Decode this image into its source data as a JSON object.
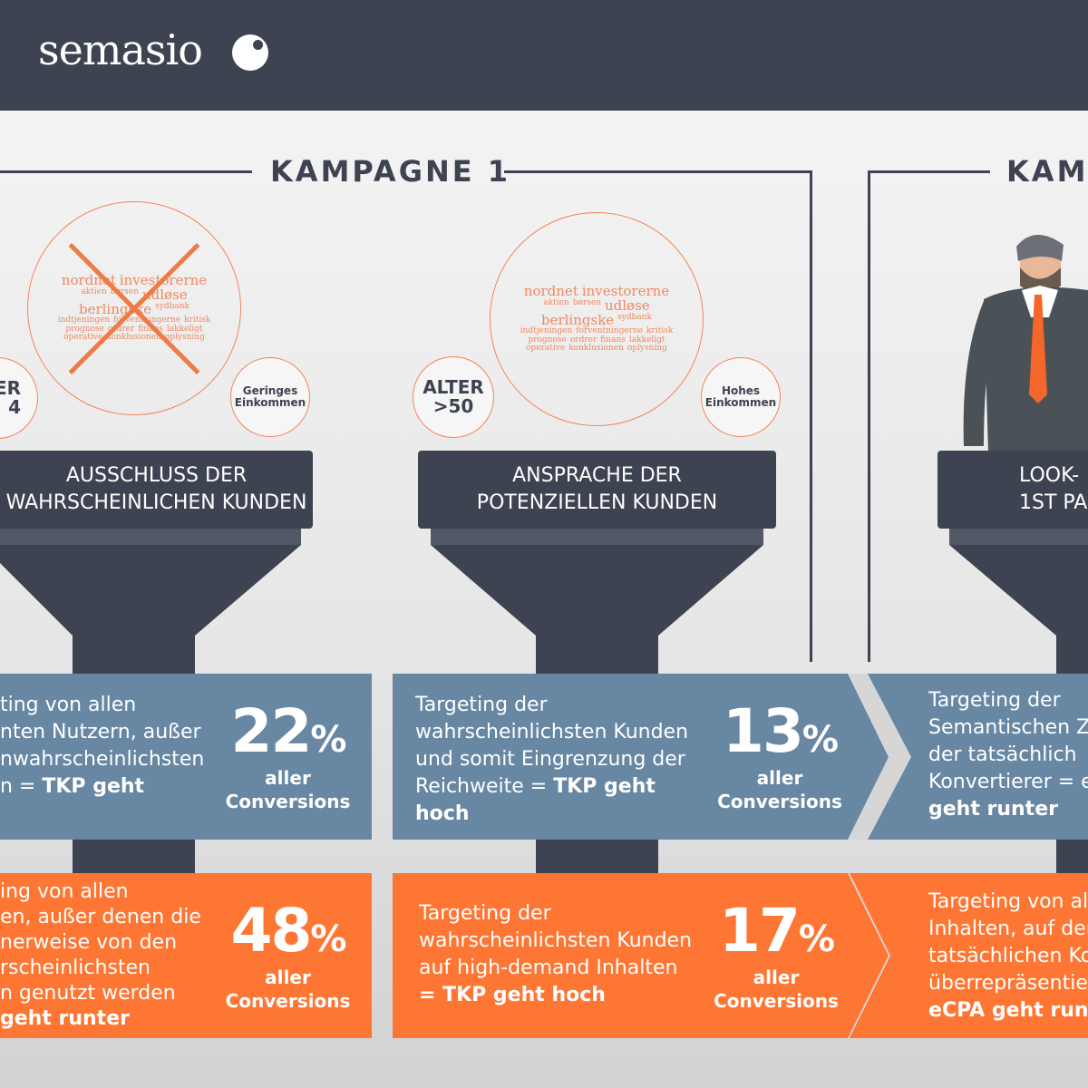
{
  "header": {
    "logo": "semasio",
    "logo_icon": "semasio-mark-icon"
  },
  "colors": {
    "dark": "#3d4350",
    "blue": "#6787a3",
    "orange": "#fe7633",
    "accent_line": "#f4845a"
  },
  "campaign1": {
    "title": "KAMPAGNE 1",
    "cloud_words": [
      "nordnet",
      "investorerne",
      "aktien",
      "børsen",
      "udløse",
      "berlingske",
      "sydbank",
      "indtjeningen",
      "forventningerne",
      "kritisk",
      "prognose",
      "ordrer",
      "finans",
      "lakkeligt",
      "operative",
      "konklusionen",
      "oplysning"
    ],
    "left_circle": {
      "line1": "ER",
      "line2": "4"
    },
    "income_low": {
      "line1": "Geringes",
      "line2": "Einkommen"
    },
    "age": {
      "line1": "ALTER",
      "line2": ">50"
    },
    "income_high": {
      "line1": "Hohes",
      "line2": "Einkommen"
    },
    "box1": {
      "line1": "AUSSCHLUSS DER",
      "line2": "WAHRSCHEINLICHEN KUNDEN"
    },
    "box2": {
      "line1": "ANSPRACHE DER",
      "line2": "POTENZIELLEN KUNDEN"
    },
    "blue1": {
      "lines": [
        "ting von allen",
        "nten Nutzern, außer",
        "nwahrscheinlichsten"
      ],
      "last": "n = ",
      "bold": "TKP geht",
      "pct": "22",
      "unit": "%",
      "aller": "aller",
      "conv": "Conversions"
    },
    "blue2": {
      "lines": [
        "Targeting der",
        "wahrscheinlichsten Kunden",
        "und somit Eingrenzung der",
        "Reichweite  = "
      ],
      "bold1": "TKP geht",
      "bold2": "hoch",
      "pct": "13",
      "unit": "%",
      "aller": "aller",
      "conv": "Conversions"
    },
    "orange1": {
      "lines": [
        "ing von allen",
        "en, außer denen die",
        "nerweise von den",
        "rscheinlichsten",
        "n genutzt werden"
      ],
      "bold": "geht runter",
      "pct": "48",
      "unit": "%",
      "aller": "aller",
      "conv": "Conversions"
    },
    "orange2": {
      "lines": [
        "Targeting der",
        "wahrscheinlichsten Kunden",
        "auf high-demand Inhalten"
      ],
      "bold": "= TKP geht hoch",
      "pct": "17",
      "unit": "%",
      "aller": "aller",
      "conv": "Conversions"
    }
  },
  "campaign2": {
    "title": "KAMP",
    "box": {
      "line1": "LOOK-",
      "line2": "1ST PA"
    },
    "blue": {
      "lines": [
        "Targeting der",
        "Semantischen Z",
        "der tatsächlich",
        "Konvertierer  = e"
      ],
      "bold": "geht runter"
    },
    "orange": {
      "lines": [
        "Targeting von al",
        "Inhalten, auf den",
        "tatsächlichen Ko",
        "überrepräsentie"
      ],
      "bold": "eCPA geht runte"
    }
  }
}
